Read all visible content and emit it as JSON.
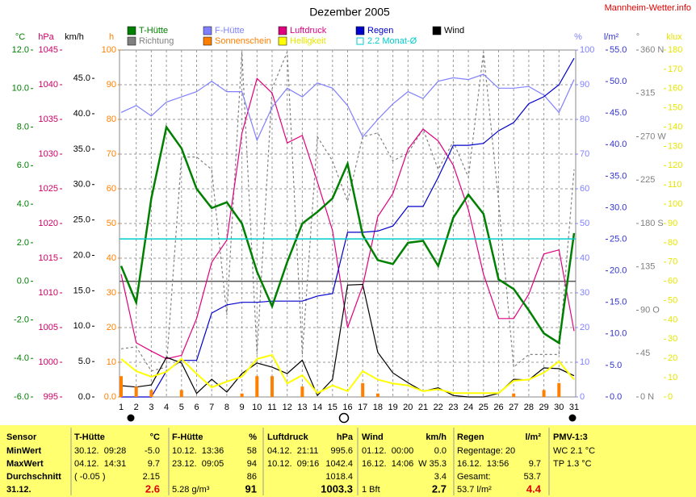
{
  "chart_data": {
    "type": "line",
    "title": "Dezember 2005",
    "site": "Mannheim-Wetter.info",
    "x": [
      1,
      2,
      3,
      4,
      5,
      6,
      7,
      8,
      9,
      10,
      11,
      12,
      13,
      14,
      15,
      16,
      17,
      18,
      19,
      20,
      21,
      22,
      23,
      24,
      25,
      26,
      27,
      28,
      29,
      30,
      31
    ],
    "xlim": [
      1,
      31
    ],
    "axes": [
      {
        "name": "°C",
        "color": "#008000",
        "lim": [
          -6,
          12
        ],
        "ticks": [
          {
            "value": -6,
            "label": "-6.0"
          },
          {
            "value": -4,
            "label": "-4.0"
          },
          {
            "value": -2,
            "label": "-2.0"
          },
          {
            "value": 0,
            "label": "0.0"
          },
          {
            "value": 2,
            "label": "2.0"
          },
          {
            "value": 4,
            "label": "4.0"
          },
          {
            "value": 6,
            "label": "6.0"
          },
          {
            "value": 8,
            "label": "8.0"
          },
          {
            "value": 10,
            "label": "10.0"
          },
          {
            "value": 12,
            "label": "12.0"
          }
        ]
      },
      {
        "name": "hPa",
        "color": "#cc0066",
        "lim": [
          995,
          1045
        ],
        "ticks": [
          995,
          1000,
          1005,
          1010,
          1015,
          1020,
          1025,
          1030,
          1035,
          1040,
          1045
        ]
      },
      {
        "name": "km/h",
        "color": "#000000",
        "lim": [
          0,
          49
        ],
        "ticks": [
          {
            "value": 0,
            "label": "0.0"
          },
          {
            "value": 5,
            "label": "5.0"
          },
          {
            "value": 10,
            "label": "10.0"
          },
          {
            "value": 15,
            "label": "15.0"
          },
          {
            "value": 20,
            "label": "20.0"
          },
          {
            "value": 25,
            "label": "25.0"
          },
          {
            "value": 30,
            "label": "30.0"
          },
          {
            "value": 35,
            "label": "35.0"
          },
          {
            "value": 40,
            "label": "40.0"
          },
          {
            "value": 45,
            "label": "45.0"
          }
        ]
      },
      {
        "name": "h",
        "color": "#ff8000",
        "lim": [
          0,
          100
        ],
        "grid": true,
        "ticks": [
          {
            "value": 0,
            "label": "0.0"
          },
          10,
          20,
          30,
          40,
          50,
          60,
          70,
          80,
          90,
          100
        ]
      },
      {
        "name": "%",
        "color": "#8080ff",
        "lim": [
          0,
          100
        ],
        "ticks": [
          0,
          10,
          20,
          30,
          40,
          50,
          60,
          70,
          80,
          90,
          100
        ]
      },
      {
        "name": "l/m²",
        "color": "#3333cc",
        "lim": [
          0,
          55
        ],
        "ticks": [
          {
            "value": 0,
            "label": "0.0"
          },
          {
            "value": 5,
            "label": "5.0"
          },
          {
            "value": 10,
            "label": "10.0"
          },
          {
            "value": 15,
            "label": "15.0"
          },
          {
            "value": 20,
            "label": "20.0"
          },
          {
            "value": 25,
            "label": "25.0"
          },
          {
            "value": 30,
            "label": "30.0"
          },
          {
            "value": 35,
            "label": "35.0"
          },
          {
            "value": 40,
            "label": "40.0"
          },
          {
            "value": 45,
            "label": "45.0"
          },
          {
            "value": 50,
            "label": "50.0"
          },
          {
            "value": 55,
            "label": "55.0"
          }
        ]
      },
      {
        "name": "°",
        "color": "#808080",
        "lim": [
          0,
          360
        ],
        "ticks": [
          {
            "value": 0,
            "label": "0 N"
          },
          45,
          {
            "value": 90,
            "label": "90 O"
          },
          135,
          {
            "value": 180,
            "label": "180 S"
          },
          225,
          {
            "value": 270,
            "label": "270 W"
          },
          315,
          {
            "value": 360,
            "label": "360 N"
          }
        ]
      },
      {
        "name": "klux",
        "color": "#e6e600",
        "lim": [
          0,
          180
        ],
        "ticks": [
          0,
          10,
          20,
          30,
          40,
          50,
          60,
          70,
          80,
          90,
          100,
          110,
          120,
          130,
          140,
          150,
          160,
          170,
          180
        ]
      }
    ],
    "series": [
      {
        "name": "T-Hütte",
        "color": "#008000",
        "axis": "°C",
        "values": [
          0.8,
          -1.1,
          4.3,
          8.0,
          6.9,
          4.8,
          3.8,
          4.1,
          3.0,
          0.5,
          -1.3,
          1.0,
          3.0,
          3.6,
          4.3,
          6.1,
          2.4,
          1.1,
          0.9,
          2.0,
          2.1,
          0.8,
          3.3,
          4.5,
          3.5,
          0.1,
          -0.4,
          -1.5,
          -2.7,
          -3.2,
          2.5
        ]
      },
      {
        "name": "F-Hütte",
        "color": "#8080ff",
        "axis": "%",
        "values": [
          82,
          84,
          81,
          85,
          86.5,
          88,
          91,
          88,
          88,
          74,
          83.5,
          89,
          86.5,
          90.5,
          89,
          84,
          75,
          80,
          84.5,
          88,
          86,
          91,
          92,
          91.5,
          93,
          89,
          89,
          89.5,
          87,
          82,
          91.5
        ]
      },
      {
        "name": "Luftdruck",
        "color": "#e0007f",
        "axis": "hPa",
        "values": [
          1012.7,
          1002.8,
          1001.6,
          1000.5,
          1001,
          1006.3,
          1014.4,
          1017.6,
          1033,
          1040.9,
          1038.8,
          1031.6,
          1032.7,
          1026,
          1019,
          1005,
          1011,
          1021,
          1024.3,
          1030.7,
          1033.6,
          1031.9,
          1028.4,
          1022,
          1012.7,
          1006.3,
          1006.3,
          1009.8,
          1015.6,
          1016.2,
          1004.5
        ]
      },
      {
        "name": "Regen",
        "color": "#0000cc",
        "axis": "l/m²",
        "values": [
          0,
          0,
          0,
          4.1,
          5.8,
          5.8,
          13.3,
          14.6,
          15,
          15,
          15.2,
          15.2,
          15.2,
          16,
          16.4,
          26.1,
          26.1,
          26.3,
          27.1,
          30.2,
          30.2,
          34.8,
          39.9,
          39.9,
          40.2,
          42.2,
          43.5,
          46.5,
          47.6,
          49.5,
          53.7
        ]
      },
      {
        "name": "Wind",
        "color": "#000000",
        "axis": "km/h",
        "values": [
          1.6,
          1.4,
          1.7,
          5.6,
          4.8,
          0.5,
          2.5,
          0.7,
          3.3,
          4.8,
          4.2,
          3.3,
          5.2,
          0.2,
          2.5,
          15.8,
          15.9,
          6.3,
          3.4,
          2,
          0.8,
          1.3,
          0.2,
          0,
          0,
          0.5,
          2.5,
          2.4,
          4.1,
          4,
          3
        ]
      },
      {
        "name": "Richtung",
        "color": "#808080",
        "axis": "°",
        "dashed": true,
        "values": [
          50,
          52,
          27,
          31,
          249,
          249,
          236,
          85,
          358,
          44,
          320,
          358,
          44,
          270,
          245,
          203,
          270,
          274,
          245,
          253,
          278,
          236,
          265,
          228,
          358,
          203,
          31,
          44,
          44,
          44,
          236
        ]
      },
      {
        "name": "Sonnenschein",
        "color": "#ff8000",
        "axis": "h",
        "bars": true,
        "values": [
          6,
          3,
          2,
          0,
          2,
          0,
          0,
          0,
          1,
          6,
          6,
          0,
          3,
          0,
          0,
          0,
          4,
          1,
          0,
          0,
          0,
          0,
          0,
          0,
          0,
          0,
          1,
          0,
          2,
          4,
          0
        ]
      },
      {
        "name": "Helligkeit",
        "color": "#ffff00",
        "axis": "klux",
        "values": [
          19.7,
          13.4,
          10.5,
          13,
          19.7,
          12,
          5,
          8,
          10.5,
          19.7,
          21.8,
          7,
          11.3,
          2,
          6,
          3,
          13.4,
          9,
          7,
          6,
          3,
          4,
          2,
          2,
          2,
          2,
          8.4,
          9,
          12.6,
          18.4,
          9
        ]
      },
      {
        "name": "2.2 Monat-Ø",
        "color": "#00cccc",
        "axis": "°C",
        "constant": 2.2
      }
    ]
  },
  "table": {
    "columns": [
      {
        "rows": [
          {
            "left": "Sensor"
          },
          {
            "left": "MinWert"
          },
          {
            "left": "MaxWert"
          },
          {
            "left": "Durchschnitt"
          },
          {
            "left": "31.12."
          }
        ]
      },
      {
        "rows": [
          {
            "left": "T-Hütte",
            "right": "°C"
          },
          {
            "left": "30.12.  09:28",
            "right": "-5.0"
          },
          {
            "left": "04.12.  14:31",
            "right": "9.7"
          },
          {
            "left": "( -0.05 )",
            "right": "2.15"
          },
          {
            "right": "2.6"
          }
        ]
      },
      {
        "rows": [
          {
            "left": "F-Hütte",
            "right": "%"
          },
          {
            "left": "10.12.  13:36",
            "right": "58"
          },
          {
            "left": "23.12.  09:05",
            "right": "94"
          },
          {
            "right": "86"
          },
          {
            "left": "5.28 g/m³",
            "right": "91"
          }
        ]
      },
      {
        "rows": [
          {
            "left": "Luftdruck",
            "right": "hPa"
          },
          {
            "left": "04.12.  21:11",
            "right": "995.6"
          },
          {
            "left": "10.12.  09:16",
            "right": "1042.4"
          },
          {
            "right": "1018.4"
          },
          {
            "right": "1003.3"
          }
        ]
      },
      {
        "rows": [
          {
            "left": "Wind",
            "right": "km/h"
          },
          {
            "left": "01.12.  00:00",
            "right": "0.0"
          },
          {
            "left": "16.12.  14:06",
            "right": "W 35.3"
          },
          {
            "right": "3.4"
          },
          {
            "left": "1 Bft",
            "right": "2.7"
          }
        ]
      },
      {
        "rows": [
          {
            "left": "Regen",
            "right": "l/m²"
          },
          {
            "left": "Regentage: 20"
          },
          {
            "left": "16.12.  13:56",
            "right": "9.7"
          },
          {
            "left": "Gesamt:",
            "right": "53.7"
          },
          {
            "left": "53.7 l/m²",
            "right": "4.4"
          }
        ]
      },
      {
        "rows": [
          {
            "left": "PMV-1:3"
          },
          {
            "left": "WC 2.1 °C"
          },
          {
            "left": "TP 1.3 °C"
          }
        ]
      }
    ]
  }
}
